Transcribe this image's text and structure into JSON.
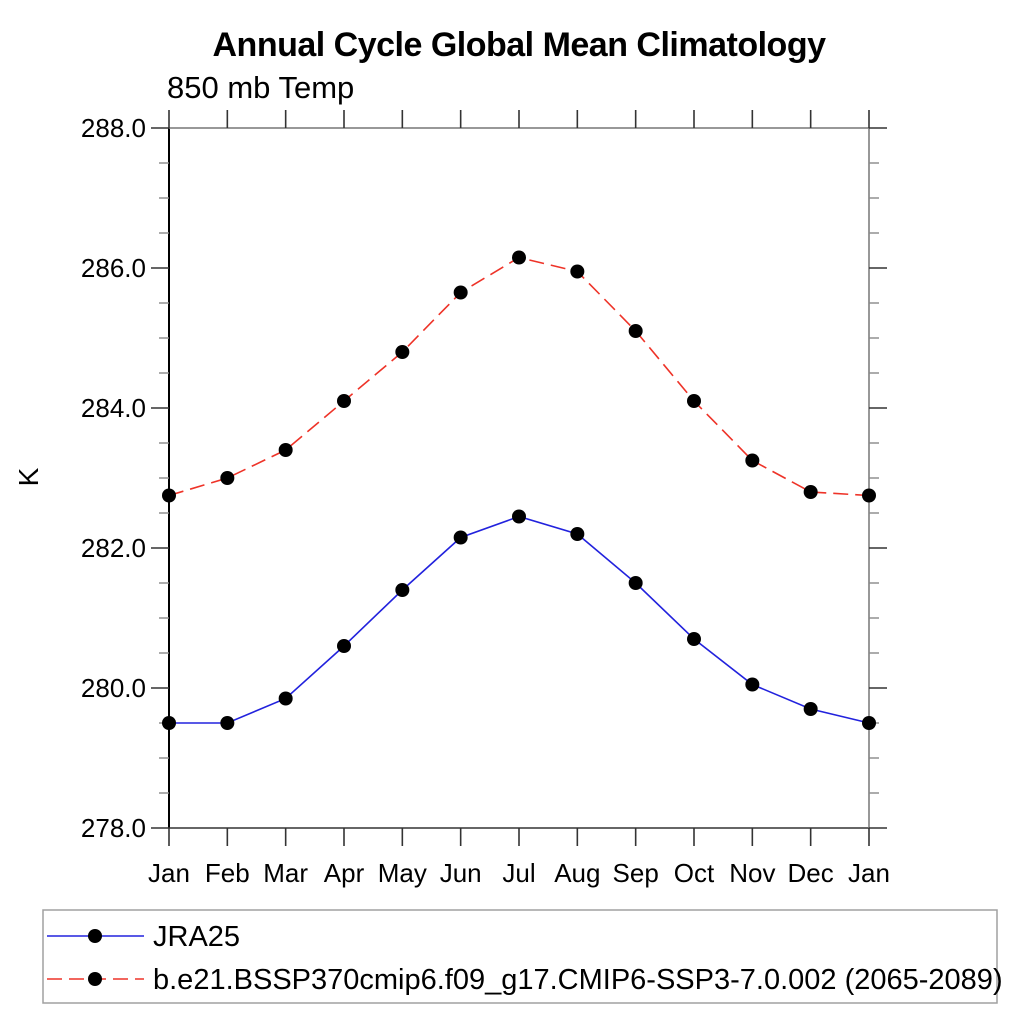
{
  "chart_data": {
    "type": "line",
    "title": "Annual Cycle Global Mean Climatology",
    "subtitle": "850 mb Temp",
    "ylabel": "K",
    "categories": [
      "Jan",
      "Feb",
      "Mar",
      "Apr",
      "May",
      "Jun",
      "Jul",
      "Aug",
      "Sep",
      "Oct",
      "Nov",
      "Dec",
      "Jan"
    ],
    "ylim": [
      278.0,
      288.0
    ],
    "ytick_values": [
      278,
      280,
      282,
      284,
      286,
      288
    ],
    "ytick_labels": [
      "278.0",
      "280.0",
      "282.0",
      "284.0",
      "286.0",
      "288.0"
    ],
    "yminor_step": 0.5,
    "grid": false,
    "legend_position": "bottom-left",
    "marker": "filled-circle",
    "marker_color": "#000000",
    "axis_color": "#000000",
    "frame_color": "#777777",
    "series": [
      {
        "name": "JRA25",
        "color": "#2222dd",
        "line_style": "solid",
        "values": [
          279.5,
          279.5,
          279.85,
          280.6,
          281.4,
          282.15,
          282.45,
          282.2,
          281.5,
          280.7,
          280.05,
          279.7,
          279.5
        ]
      },
      {
        "name": "b.e21.BSSP370cmip6.f09_g17.CMIP6-SSP3-7.0.002 (2065-2089)",
        "color": "#ee3328",
        "line_style": "dashed",
        "values": [
          282.75,
          283.0,
          283.4,
          284.1,
          284.8,
          285.65,
          286.15,
          285.95,
          285.1,
          284.1,
          283.25,
          282.8,
          282.75
        ]
      }
    ]
  }
}
